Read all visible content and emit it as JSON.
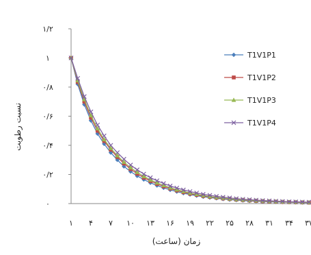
{
  "chart_data": {
    "type": "line",
    "xlabel": "زمان (ساعت)",
    "ylabel": "نسبت رطوبت",
    "ylim": [
      0,
      1.2
    ],
    "y_ticks": [
      {
        "value": 0,
        "label": "۰"
      },
      {
        "value": 0.2,
        "label": "۰/۲"
      },
      {
        "value": 0.4,
        "label": "۰/۴"
      },
      {
        "value": 0.6,
        "label": "۰/۶"
      },
      {
        "value": 0.8,
        "label": "۰/۸"
      },
      {
        "value": 1,
        "label": "۱"
      },
      {
        "value": 1.2,
        "label": "۱/۲"
      }
    ],
    "x_ticks": [
      {
        "value": 1,
        "label": "۱"
      },
      {
        "value": 4,
        "label": "۴"
      },
      {
        "value": 7,
        "label": "۷"
      },
      {
        "value": 10,
        "label": "۱۰"
      },
      {
        "value": 13,
        "label": "۱۳"
      },
      {
        "value": 16,
        "label": "۱۶"
      },
      {
        "value": 19,
        "label": "۱۹"
      },
      {
        "value": 22,
        "label": "۲۲"
      },
      {
        "value": 25,
        "label": "۲۵"
      },
      {
        "value": 28,
        "label": "۲۸"
      },
      {
        "value": 31,
        "label": "۳۱"
      },
      {
        "value": 34,
        "label": "۳۴"
      },
      {
        "value": 37,
        "label": "۳۷"
      }
    ],
    "x": [
      1,
      2,
      3,
      4,
      5,
      6,
      7,
      8,
      9,
      10,
      11,
      12,
      13,
      14,
      15,
      16,
      17,
      18,
      19,
      20,
      21,
      22,
      23,
      24,
      25,
      26,
      27,
      28,
      29,
      30,
      31,
      32,
      33,
      34,
      35,
      36,
      37
    ],
    "legend_position": "right",
    "series": [
      {
        "name": "T1V1P1",
        "color": "#4a7ebb",
        "marker": "diamond",
        "values": [
          1.0,
          0.82,
          0.68,
          0.57,
          0.48,
          0.41,
          0.35,
          0.3,
          0.255,
          0.22,
          0.19,
          0.165,
          0.143,
          0.124,
          0.108,
          0.094,
          0.082,
          0.071,
          0.062,
          0.054,
          0.047,
          0.041,
          0.036,
          0.031,
          0.027,
          0.024,
          0.021,
          0.018,
          0.016,
          0.014,
          0.012,
          0.011,
          0.01,
          0.009,
          0.008,
          0.007,
          0.006
        ]
      },
      {
        "name": "T1V1P2",
        "color": "#be4b48",
        "marker": "square",
        "values": [
          1.0,
          0.835,
          0.7,
          0.59,
          0.5,
          0.43,
          0.37,
          0.32,
          0.275,
          0.237,
          0.205,
          0.178,
          0.155,
          0.135,
          0.118,
          0.103,
          0.09,
          0.078,
          0.068,
          0.06,
          0.052,
          0.046,
          0.04,
          0.035,
          0.031,
          0.027,
          0.024,
          0.021,
          0.018,
          0.016,
          0.014,
          0.013,
          0.011,
          0.01,
          0.009,
          0.008,
          0.007
        ]
      },
      {
        "name": "T1V1P3",
        "color": "#98b954",
        "marker": "triangle",
        "values": [
          1.0,
          0.845,
          0.715,
          0.605,
          0.515,
          0.44,
          0.38,
          0.33,
          0.285,
          0.247,
          0.215,
          0.187,
          0.163,
          0.143,
          0.125,
          0.109,
          0.096,
          0.084,
          0.073,
          0.064,
          0.056,
          0.049,
          0.043,
          0.038,
          0.033,
          0.029,
          0.026,
          0.023,
          0.02,
          0.018,
          0.016,
          0.014,
          0.012,
          0.011,
          0.01,
          0.009,
          0.008
        ]
      },
      {
        "name": "T1V1P4",
        "color": "#7d60a0",
        "marker": "x",
        "values": [
          1.0,
          0.86,
          0.735,
          0.63,
          0.54,
          0.465,
          0.4,
          0.35,
          0.305,
          0.265,
          0.232,
          0.203,
          0.178,
          0.157,
          0.138,
          0.121,
          0.107,
          0.094,
          0.083,
          0.073,
          0.064,
          0.057,
          0.05,
          0.044,
          0.039,
          0.034,
          0.03,
          0.027,
          0.024,
          0.021,
          0.019,
          0.017,
          0.015,
          0.013,
          0.012,
          0.011,
          0.01
        ]
      }
    ]
  }
}
